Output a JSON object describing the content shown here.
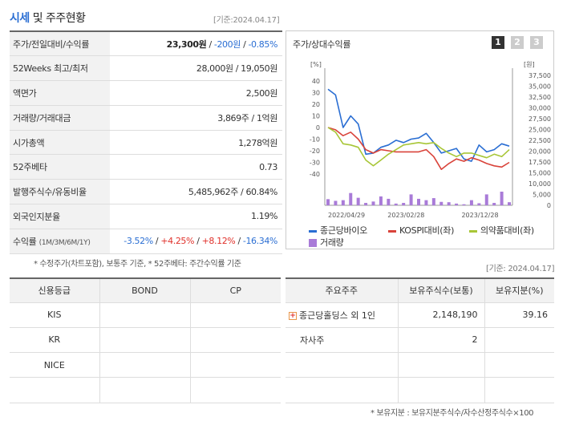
{
  "header": {
    "title_blue": "시세",
    "title_rest": " 및 주주현황",
    "date": "[기준:2024.04.17]"
  },
  "price_table": [
    {
      "label": "주가/전일대비/수익률",
      "price": "23,300원",
      "sep1": " / ",
      "change": "-200원",
      "sep2": " / ",
      "rate": "-0.85%"
    },
    {
      "label": "52Weeks 최고/최저",
      "value": "28,000원 / 19,050원"
    },
    {
      "label": "액면가",
      "value": "2,500원"
    },
    {
      "label": "거래량/거래대금",
      "value": "3,869주 / 1억원"
    },
    {
      "label": "시가총액",
      "value": "1,278억원"
    },
    {
      "label": "52주베타",
      "value": "0.73"
    },
    {
      "label": "발행주식수/유동비율",
      "value": "5,485,962주 / 60.84%"
    },
    {
      "label": "외국인지분율",
      "value": "1.19%"
    },
    {
      "label": "수익률",
      "label_small": "(1M/3M/6M/1Y)",
      "r1": "-3.52%",
      "r2": "+4.25%",
      "r3": "+8.12%",
      "r4": "-16.34%",
      "sep": "/ "
    }
  ],
  "note_price": "* 수정주가(차트포함), 보통주 기준, * 52주베타: 주간수익률 기준",
  "note_date2": "[기준: 2024.04.17]",
  "chart_panel": {
    "title": "주가/상대수익률",
    "tabs": [
      "1",
      "2",
      "3"
    ]
  },
  "chart_data": {
    "type": "line",
    "title": "주가/상대수익률",
    "left_unit": "[%]",
    "right_unit": "[원]",
    "left_ticks": [
      "40",
      "30",
      "20",
      "10",
      "0",
      "-10",
      "-20",
      "-30",
      "-40"
    ],
    "right_ticks": [
      "37,500",
      "35,000",
      "32,500",
      "30,000",
      "27,500",
      "25,000",
      "22,500",
      "20,000",
      "17,500",
      "15,000",
      "10,000",
      "5,000",
      "0"
    ],
    "x_labels": [
      "2022/04/29",
      "2023/02/28",
      "2023/12/28"
    ],
    "ylim_pct": [
      -40,
      40
    ],
    "series": [
      {
        "name": "종근당바이오",
        "color": "#2a6ed3",
        "values": [
          33,
          28,
          0,
          10,
          3,
          -23,
          -22,
          -17,
          -15,
          -11,
          -13,
          -10,
          -9,
          -5,
          -13,
          -22,
          -20,
          -18,
          -27,
          -29,
          -15,
          -21,
          -19,
          -14,
          -16
        ]
      },
      {
        "name": "KOSPI대비(좌)",
        "color": "#d9433a",
        "values": [
          0,
          -2,
          -7,
          -4,
          -10,
          -19,
          -22,
          -19,
          -20,
          -21,
          -21,
          -21,
          -21,
          -19,
          -25,
          -36,
          -31,
          -27,
          -29,
          -26,
          -28,
          -31,
          -33,
          -34,
          -30
        ]
      },
      {
        "name": "의약품대비(좌)",
        "color": "#a8c637",
        "values": [
          0,
          -4,
          -14,
          -15,
          -17,
          -28,
          -33,
          -28,
          -23,
          -19,
          -15,
          -14,
          -13,
          -14,
          -13,
          -18,
          -22,
          -25,
          -22,
          -22,
          -24,
          -26,
          -23,
          -25,
          -19
        ]
      }
    ],
    "volume_series": {
      "name": "거래량",
      "color": "#a97bd8",
      "values": [
        9000,
        6500,
        7500,
        18000,
        11000,
        3500,
        5500,
        13000,
        9500,
        2500,
        3500,
        16000,
        9500,
        7500,
        10500,
        5000,
        4500,
        2500,
        1500,
        7500,
        3000,
        16000,
        3500,
        20000,
        4500
      ]
    },
    "volume_ticks": [
      "20,000",
      "15,000",
      "10,000",
      "5,000",
      "0"
    ]
  },
  "legend": [
    {
      "label": "종근당바이오",
      "color": "#2a6ed3"
    },
    {
      "label": "KOSPI대비(좌)",
      "color": "#d9433a"
    },
    {
      "label": "의약품대비(좌)",
      "color": "#a8c637"
    },
    {
      "label": "거래량",
      "color": "#a97bd8"
    }
  ],
  "credit_table": {
    "headers": [
      "신용등급",
      "BOND",
      "CP"
    ],
    "rows": [
      [
        "KIS",
        "",
        ""
      ],
      [
        "KR",
        "",
        ""
      ],
      [
        "NICE",
        "",
        ""
      ],
      [
        "",
        "",
        ""
      ]
    ]
  },
  "holder_table": {
    "headers": [
      "주요주주",
      "보유주식수(보통)",
      "보유지분(%)"
    ],
    "rows": [
      {
        "name": "종근당홀딩스 외 1인",
        "shares": "2,148,190",
        "pct": "39.16",
        "expandable": true,
        "expand_icon": "+"
      },
      {
        "name": "자사주",
        "shares": "2",
        "pct": ""
      },
      {
        "name": "",
        "shares": "",
        "pct": ""
      },
      {
        "name": "",
        "shares": "",
        "pct": ""
      }
    ]
  },
  "note_holder": "* 보유지분 : 보유지분주식수/자수산정주식수×100"
}
